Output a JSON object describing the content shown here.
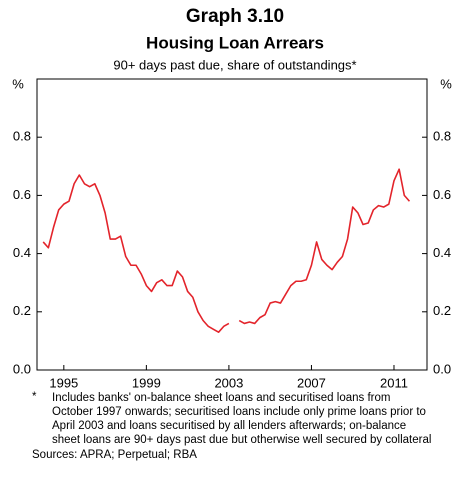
{
  "chart_data": {
    "type": "line",
    "title": "Graph 3.10",
    "subtitle": "Housing Loan Arrears",
    "description": "90+ days past due, share of outstandings*",
    "y_unit": "%",
    "x": [
      1994,
      1994.25,
      1994.5,
      1994.75,
      1995,
      1995.25,
      1995.5,
      1995.75,
      1996,
      1996.25,
      1996.5,
      1996.75,
      1997,
      1997.25,
      1997.5,
      1997.75,
      1998,
      1998.25,
      1998.5,
      1998.75,
      1999,
      1999.25,
      1999.5,
      1999.75,
      2000,
      2000.25,
      2000.5,
      2000.75,
      2001,
      2001.25,
      2001.5,
      2001.75,
      2002,
      2002.25,
      2002.5,
      2002.75,
      2003,
      2003.25,
      2003.5,
      2003.75,
      2004,
      2004.25,
      2004.5,
      2004.75,
      2005,
      2005.25,
      2005.5,
      2005.75,
      2006,
      2006.25,
      2006.5,
      2006.75,
      2007,
      2007.25,
      2007.5,
      2007.75,
      2008,
      2008.25,
      2008.5,
      2008.75,
      2009,
      2009.25,
      2009.5,
      2009.75,
      2010,
      2010.25,
      2010.5,
      2010.75,
      2011,
      2011.25,
      2011.5,
      2011.75
    ],
    "series": [
      {
        "color": "#e3242b",
        "values": [
          0.44,
          0.42,
          0.49,
          0.55,
          0.57,
          0.58,
          0.64,
          0.67,
          0.64,
          0.63,
          0.64,
          0.6,
          0.54,
          0.45,
          0.45,
          0.46,
          0.39,
          0.36,
          0.36,
          0.33,
          0.29,
          0.27,
          0.3,
          0.31,
          0.29,
          0.29,
          0.34,
          0.32,
          0.27,
          0.25,
          0.2,
          0.17,
          0.15,
          0.14,
          0.13,
          0.15,
          0.16,
          null,
          0.17,
          0.16,
          0.165,
          0.16,
          0.18,
          0.19,
          0.23,
          0.235,
          0.23,
          0.26,
          0.29,
          0.305,
          0.305,
          0.31,
          0.36,
          0.44,
          0.38,
          0.36,
          0.345,
          0.37,
          0.39,
          0.45,
          0.56,
          0.54,
          0.5,
          0.505,
          0.55,
          0.565,
          0.56,
          0.57,
          0.65,
          0.69,
          0.6,
          0.58
        ]
      }
    ],
    "xlim": [
      1993.7,
      2012.6
    ],
    "xticks": [
      1995,
      1999,
      2003,
      2007,
      2011
    ],
    "ylim": [
      0,
      1
    ],
    "yticks": [
      {
        "value": 0,
        "label": "0.0"
      },
      0.2,
      0.4,
      0.6,
      0.8
    ],
    "footnote_marker": "*",
    "footnotes": [
      "Includes banks' on-balance sheet loans and securitised loans from",
      "October 1997 onwards; securitised loans include only prime loans prior to",
      "April 2003 and loans securitised by all lenders afterwards; on-balance",
      "sheet loans are 90+ days past due but otherwise well secured by collateral"
    ],
    "source": "Sources: APRA; Perpetual; RBA"
  }
}
